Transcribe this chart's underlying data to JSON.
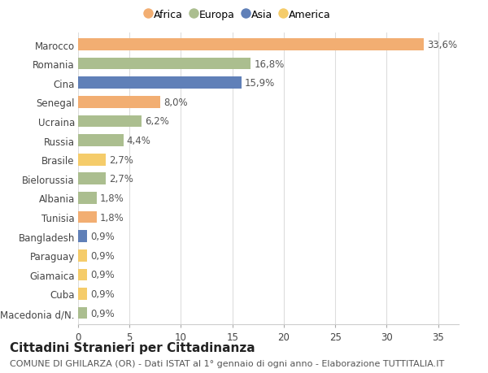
{
  "countries": [
    "Macedonia d/N.",
    "Cuba",
    "Giamaica",
    "Paraguay",
    "Bangladesh",
    "Tunisia",
    "Albania",
    "Bielorussia",
    "Brasile",
    "Russia",
    "Ucraina",
    "Senegal",
    "Cina",
    "Romania",
    "Marocco"
  ],
  "values": [
    0.9,
    0.9,
    0.9,
    0.9,
    0.9,
    1.8,
    1.8,
    2.7,
    2.7,
    4.4,
    6.2,
    8.0,
    15.9,
    16.8,
    33.6
  ],
  "labels": [
    "0,9%",
    "0,9%",
    "0,9%",
    "0,9%",
    "0,9%",
    "1,8%",
    "1,8%",
    "2,7%",
    "2,7%",
    "4,4%",
    "6,2%",
    "8,0%",
    "15,9%",
    "16,8%",
    "33,6%"
  ],
  "continents": [
    "Europa",
    "America",
    "America",
    "America",
    "Asia",
    "Africa",
    "Europa",
    "Europa",
    "America",
    "Europa",
    "Europa",
    "Africa",
    "Asia",
    "Europa",
    "Africa"
  ],
  "continent_colors": {
    "Africa": "#F2AE72",
    "Europa": "#ABBE8F",
    "Asia": "#6080B8",
    "America": "#F5CC6A"
  },
  "legend_order": [
    "Africa",
    "Europa",
    "Asia",
    "America"
  ],
  "xlim": [
    0,
    37
  ],
  "xticks": [
    0,
    5,
    10,
    15,
    20,
    25,
    30,
    35
  ],
  "background_color": "#ffffff",
  "grid_color": "#dddddd",
  "title": "Cittadini Stranieri per Cittadinanza",
  "subtitle": "COMUNE DI GHILARZA (OR) - Dati ISTAT al 1° gennaio di ogni anno - Elaborazione TUTTITALIA.IT",
  "bar_height": 0.62,
  "label_fontsize": 8.5,
  "tick_label_fontsize": 8.5,
  "title_fontsize": 11,
  "subtitle_fontsize": 8
}
